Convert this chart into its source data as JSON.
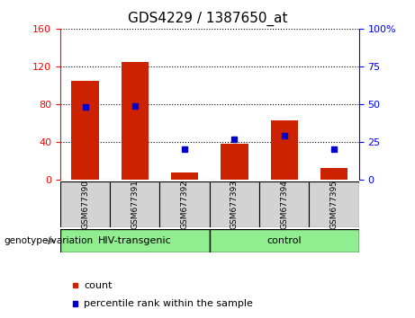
{
  "title": "GDS4229 / 1387650_at",
  "categories": [
    "GSM677390",
    "GSM677391",
    "GSM677392",
    "GSM677393",
    "GSM677394",
    "GSM677395"
  ],
  "counts": [
    105,
    125,
    8,
    38,
    63,
    12
  ],
  "percentile_ranks": [
    48,
    49,
    20,
    27,
    29,
    20
  ],
  "bar_color": "#cc2200",
  "marker_color": "#0000cc",
  "ylim_left": [
    0,
    160
  ],
  "ylim_right": [
    0,
    100
  ],
  "yticks_left": [
    0,
    40,
    80,
    120,
    160
  ],
  "yticks_right": [
    0,
    25,
    50,
    75,
    100
  ],
  "ytick_labels_right": [
    "0",
    "25",
    "50",
    "75",
    "100%"
  ],
  "group1_label": "HIV-transgenic",
  "group2_label": "control",
  "group1_indices": [
    0,
    1,
    2
  ],
  "group2_indices": [
    3,
    4,
    5
  ],
  "xlabel_left": "genotype/variation",
  "legend_count": "count",
  "legend_pct": "percentile rank within the sample",
  "bar_width": 0.55,
  "group_box_color": "#90ee90",
  "tick_area_color": "#d3d3d3",
  "title_fontsize": 11,
  "tick_fontsize": 8,
  "cat_fontsize": 6.5,
  "group_fontsize": 8,
  "legend_fontsize": 8
}
